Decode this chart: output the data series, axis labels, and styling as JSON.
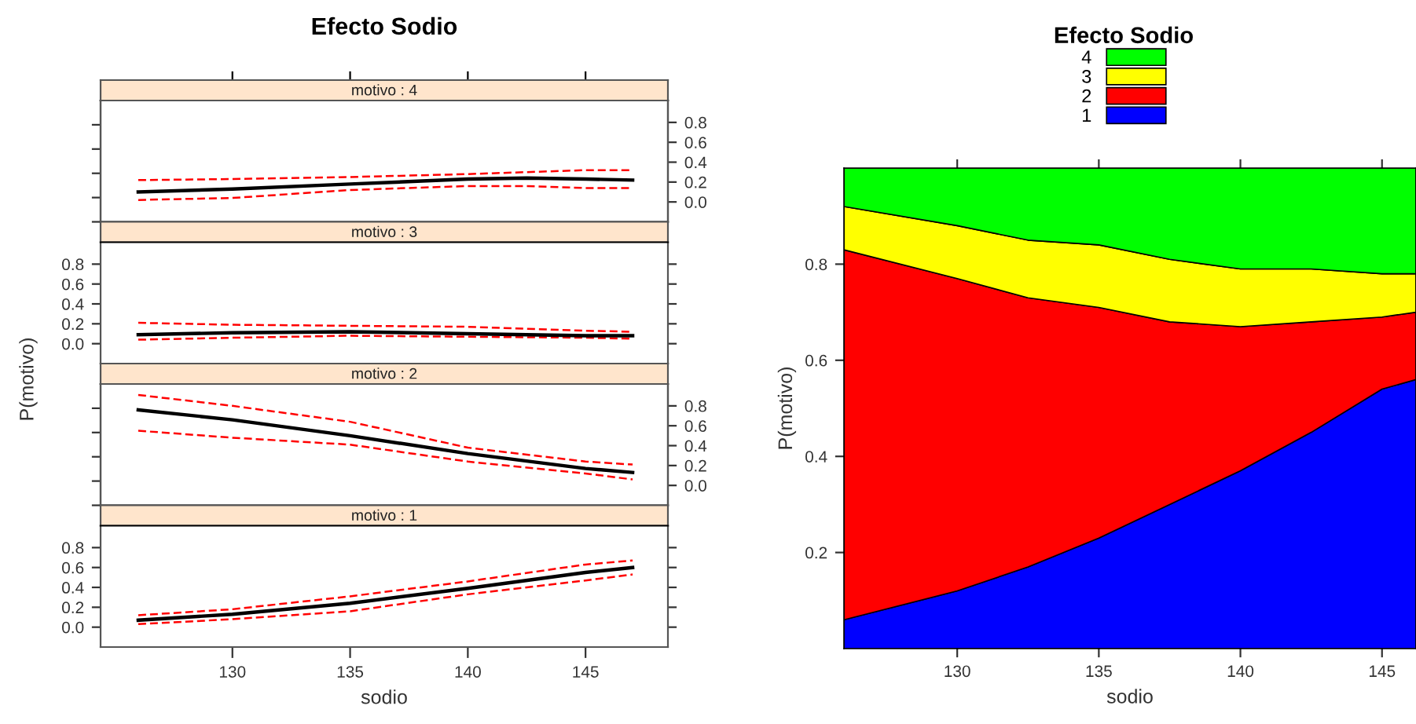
{
  "chart_data": [
    {
      "type": "line",
      "title": "Efecto Sodio",
      "subtitle": "motivo : 4",
      "xlim": [
        124.4,
        148.5
      ],
      "xticks": [
        130,
        135,
        140,
        145
      ],
      "y2lim": [
        -0.2,
        1.02
      ],
      "y2ticks": [
        {
          "value": 0,
          "label": "0.0"
        },
        0.2,
        0.4,
        0.6,
        0.8
      ],
      "tick_labels": "y",
      "grid": false,
      "x": [
        126,
        130,
        135,
        140,
        142.5,
        145,
        147
      ],
      "series": [
        {
          "color": "#ff0000",
          "line_style": "dashed",
          "axis": "y2",
          "values": [
            0.02,
            0.04,
            0.12,
            0.16,
            0.16,
            0.14,
            0.14
          ]
        },
        {
          "color": "#ff0000",
          "line_style": "dashed",
          "axis": "y2",
          "values": [
            0.22,
            0.23,
            0.25,
            0.28,
            0.3,
            0.32,
            0.32
          ]
        },
        {
          "color": "#000000",
          "line_style": "solid",
          "axis": "y2",
          "values": [
            0.1,
            0.13,
            0.18,
            0.23,
            0.24,
            0.23,
            0.22
          ]
        }
      ]
    },
    {
      "type": "line",
      "subtitle": "motivo : 3",
      "ylabel": "P(motivo)",
      "xlim": [
        124.4,
        148.5
      ],
      "xticks": [
        130,
        135,
        140,
        145
      ],
      "ylim": [
        -0.2,
        1.02
      ],
      "yticks": [
        {
          "value": 0,
          "label": "0.0"
        },
        0.2,
        0.4,
        0.6,
        0.8
      ],
      "tick_labels": "y",
      "grid": false,
      "x": [
        126,
        130,
        135,
        140,
        145,
        147
      ],
      "series": [
        {
          "color": "#ff0000",
          "line_style": "dashed",
          "values": [
            0.04,
            0.06,
            0.08,
            0.07,
            0.06,
            0.05
          ]
        },
        {
          "color": "#ff0000",
          "line_style": "dashed",
          "values": [
            0.21,
            0.19,
            0.18,
            0.17,
            0.13,
            0.12
          ]
        },
        {
          "color": "#000000",
          "line_style": "solid",
          "values": [
            0.09,
            0.11,
            0.12,
            0.1,
            0.08,
            0.08
          ]
        }
      ]
    },
    {
      "type": "line",
      "subtitle": "motivo : 2",
      "xlim": [
        124.4,
        148.5
      ],
      "xticks": [
        130,
        135,
        140,
        145
      ],
      "y2lim": [
        -0.2,
        1.02
      ],
      "y2ticks": [
        {
          "value": 0,
          "label": "0.0"
        },
        0.2,
        0.4,
        0.6,
        0.8
      ],
      "tick_labels": "y",
      "grid": false,
      "x": [
        126,
        130,
        135,
        140,
        145,
        147
      ],
      "series": [
        {
          "color": "#ff0000",
          "line_style": "dashed",
          "axis": "y2",
          "values": [
            0.55,
            0.48,
            0.41,
            0.24,
            0.12,
            0.06
          ]
        },
        {
          "color": "#ff0000",
          "line_style": "dashed",
          "axis": "y2",
          "values": [
            0.91,
            0.8,
            0.64,
            0.38,
            0.24,
            0.21
          ]
        },
        {
          "color": "#000000",
          "line_style": "solid",
          "axis": "y2",
          "values": [
            0.76,
            0.66,
            0.5,
            0.32,
            0.17,
            0.13
          ]
        }
      ]
    },
    {
      "type": "line",
      "subtitle": "motivo : 1",
      "xlabel": "sodio",
      "xlim": [
        124.4,
        148.5
      ],
      "xticks": [
        130,
        135,
        140,
        145
      ],
      "ylim": [
        -0.2,
        1.02
      ],
      "yticks": [
        {
          "value": 0,
          "label": "0.0"
        },
        0.2,
        0.4,
        0.6,
        0.8
      ],
      "grid": false,
      "x": [
        126,
        130,
        135,
        140,
        145,
        147
      ],
      "series": [
        {
          "color": "#ff0000",
          "line_style": "dashed",
          "values": [
            0.03,
            0.08,
            0.16,
            0.33,
            0.47,
            0.53
          ]
        },
        {
          "color": "#ff0000",
          "line_style": "dashed",
          "values": [
            0.12,
            0.18,
            0.31,
            0.46,
            0.63,
            0.67
          ]
        },
        {
          "color": "#000000",
          "line_style": "solid",
          "values": [
            0.07,
            0.13,
            0.24,
            0.39,
            0.55,
            0.6
          ]
        }
      ]
    },
    {
      "type": "area",
      "stacked": true,
      "legend_title": "Efecto Sodio",
      "legend": "top",
      "grid": false,
      "xlabel": "sodio",
      "ylabel": "P(motivo)",
      "xlim": [
        126,
        146.2
      ],
      "xticks": [
        130,
        135,
        140,
        145
      ],
      "ylim": [
        0,
        1
      ],
      "yticks": [
        0.2,
        0.4,
        0.6,
        0.8
      ],
      "x": [
        126,
        130,
        132.5,
        135,
        137.5,
        140,
        142.5,
        145,
        146.2
      ],
      "series": [
        {
          "name": "1",
          "color": "#0000ff",
          "values": [
            0.06,
            0.12,
            0.17,
            0.23,
            0.3,
            0.37,
            0.45,
            0.54,
            0.56
          ]
        },
        {
          "name": "2",
          "color": "#ff0000",
          "values": [
            0.77,
            0.65,
            0.56,
            0.48,
            0.38,
            0.3,
            0.23,
            0.15,
            0.14
          ]
        },
        {
          "name": "3",
          "color": "#ffff00",
          "values": [
            0.09,
            0.11,
            0.12,
            0.13,
            0.13,
            0.12,
            0.11,
            0.09,
            0.08
          ]
        },
        {
          "name": "4",
          "color": "#00ff00",
          "values": [
            0.08,
            0.12,
            0.15,
            0.16,
            0.19,
            0.21,
            0.21,
            0.22,
            0.22
          ]
        }
      ]
    }
  ]
}
